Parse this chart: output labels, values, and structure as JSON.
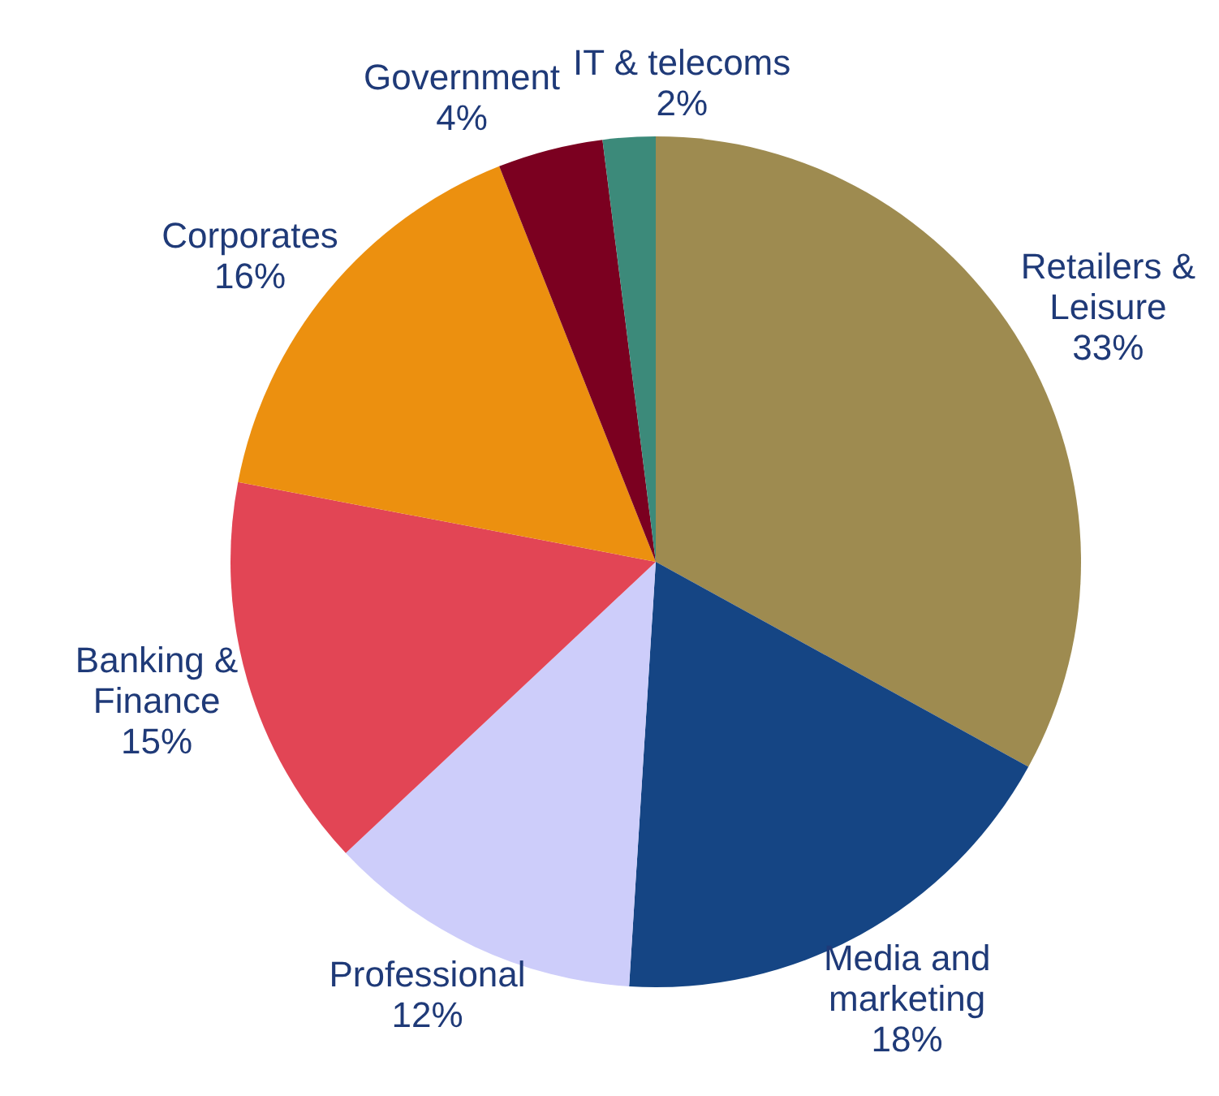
{
  "chart_data": {
    "type": "pie",
    "categories": [
      "Retailers & Leisure",
      "Media and marketing",
      "Professional",
      "Banking & Finance",
      "Corporates",
      "Government",
      "IT & telecoms"
    ],
    "values": [
      33,
      18,
      12,
      15,
      16,
      4,
      2
    ],
    "value_labels": [
      "33%",
      "18%",
      "12%",
      "15%",
      "16%",
      "4%",
      "2%"
    ],
    "colors": [
      "#9e8b50",
      "#154584",
      "#cdcdfa",
      "#e24555",
      "#ec900f",
      "#7b0020",
      "#3c8a7a"
    ]
  }
}
